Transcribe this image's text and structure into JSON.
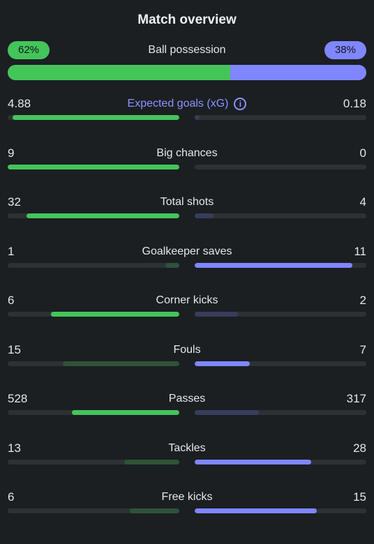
{
  "title": "Match overview",
  "colors": {
    "home_strong": "#44c55a",
    "home_weak": "#2f5238",
    "away_strong": "#7f86ff",
    "away_weak": "#383d5c",
    "track": "#2c3135"
  },
  "possession": {
    "label": "Ball possession",
    "home_text": "62%",
    "away_text": "38%",
    "home_fraction": 0.62,
    "away_fraction": 0.38
  },
  "stats": [
    {
      "label": "Expected goals (xG)",
      "home": "4.88",
      "away": "0.18",
      "home_fill": 0.97,
      "away_fill": 0.03,
      "highlight": "home",
      "accent_label": true,
      "icon": "info-icon"
    },
    {
      "label": "Big chances",
      "home": "9",
      "away": "0",
      "home_fill": 1.0,
      "away_fill": 0.0,
      "highlight": "home"
    },
    {
      "label": "Total shots",
      "home": "32",
      "away": "4",
      "home_fill": 0.89,
      "away_fill": 0.11,
      "highlight": "home"
    },
    {
      "label": "Goalkeeper saves",
      "home": "1",
      "away": "11",
      "home_fill": 0.08,
      "away_fill": 0.92,
      "highlight": "away"
    },
    {
      "label": "Corner kicks",
      "home": "6",
      "away": "2",
      "home_fill": 0.75,
      "away_fill": 0.25,
      "highlight": "home"
    },
    {
      "label": "Fouls",
      "home": "15",
      "away": "7",
      "home_fill": 0.68,
      "away_fill": 0.32,
      "highlight": "away"
    },
    {
      "label": "Passes",
      "home": "528",
      "away": "317",
      "home_fill": 0.625,
      "away_fill": 0.375,
      "highlight": "home"
    },
    {
      "label": "Tackles",
      "home": "13",
      "away": "28",
      "home_fill": 0.32,
      "away_fill": 0.68,
      "highlight": "away"
    },
    {
      "label": "Free kicks",
      "home": "6",
      "away": "15",
      "home_fill": 0.29,
      "away_fill": 0.71,
      "highlight": "away"
    }
  ]
}
